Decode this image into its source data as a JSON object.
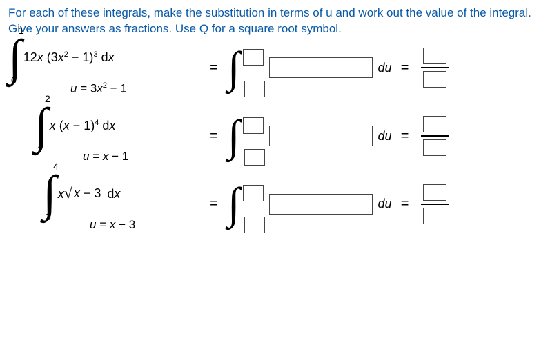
{
  "instructions": "For each of these integrals, make the substitution in terms of u and work out the value of the integral. Give your answers as fractions. Use Q for a square root symbol.",
  "problems": [
    {
      "upper": "1",
      "lower": "0",
      "integrand_html": "12<span class='ital'>x</span> (3<span class='ital'>x</span><sup class='exp'>2</sup> − 1)<sup class='exp'>3</sup> d<span class='ital'>x</span>",
      "substitution_html": "<span class='ital'>u</span> = 3<span class='ital'>x</span><sup class='exp'>2</sup> − 1",
      "indent": ""
    },
    {
      "upper": "2",
      "lower": "1",
      "integrand_html": "<span class='ital'>x</span> (<span class='ital'>x</span> − 1)<sup class='exp'>4</sup> d<span class='ital'>x</span>",
      "substitution_html": "<span class='ital'>u</span> = <span class='ital'>x</span> − 1",
      "indent": "indent-1"
    },
    {
      "upper": "4",
      "lower": "3",
      "integrand_html": "<span class='ital'>x</span><span class='sqrt-wrap'><span class='sqrt-sign'>√</span><span class='sqrt-bar'><span class='ital'>x</span> − 3</span></span> d<span class='ital'>x</span>",
      "substitution_html": "<span class='ital'>u</span> = <span class='ital'>x</span> − 3",
      "indent": "indent-2"
    }
  ],
  "symbols": {
    "equals": "=",
    "du": "du",
    "integral": "∫"
  }
}
